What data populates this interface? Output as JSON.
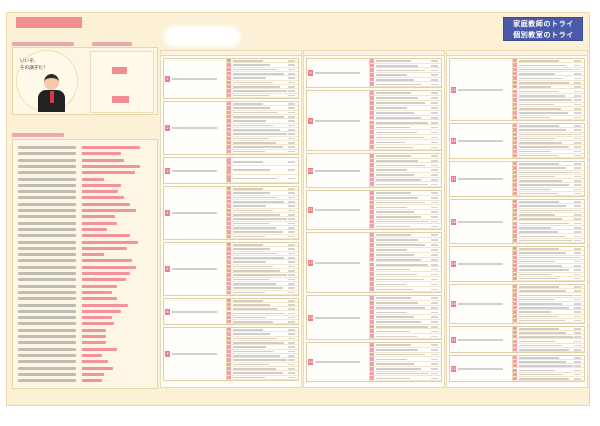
{
  "header": {
    "sheet_title": "",
    "table_title": "",
    "logo_line1": "家庭教師のトライ",
    "logo_line2": "個別教室のトライ",
    "brand_color": "#4a5aa8",
    "accent_color": "#f28d92"
  },
  "avatar": {
    "speech_line1": "いいぞ、",
    "speech_line2": "その調子だ！"
  },
  "mini_chart": {
    "rows": [
      {
        "label": "",
        "value_text": "",
        "fraction": 0.42
      },
      {
        "label": "",
        "value_text": "",
        "fraction": 0.48
      }
    ]
  },
  "left_bars": [
    0.85,
    0.58,
    0.62,
    0.86,
    0.78,
    0.32,
    0.57,
    0.53,
    0.62,
    0.7,
    0.8,
    0.48,
    0.52,
    0.37,
    0.71,
    0.82,
    0.66,
    0.33,
    0.73,
    0.8,
    0.7,
    0.64,
    0.51,
    0.44,
    0.52,
    0.68,
    0.58,
    0.44,
    0.47,
    0.36,
    0.36,
    0.36,
    0.52,
    0.3,
    0.38,
    0.45,
    0.33,
    0.29
  ],
  "topic_columns": [
    {
      "topics": [
        {
          "number": "1",
          "rows": 9
        },
        {
          "number": "2",
          "rows": 12
        },
        {
          "number": "3",
          "rows": 3
        },
        {
          "number": "4",
          "rows": 12
        },
        {
          "number": "5",
          "rows": 12
        },
        {
          "number": "6",
          "rows": 6
        },
        {
          "number": "7",
          "rows": 12
        }
      ]
    },
    {
      "topics": [
        {
          "number": "8",
          "rows": 6
        },
        {
          "number": "9",
          "rows": 12
        },
        {
          "number": "10",
          "rows": 7
        },
        {
          "number": "11",
          "rows": 8
        },
        {
          "number": "12",
          "rows": 12
        },
        {
          "number": "13",
          "rows": 9
        },
        {
          "number": "14",
          "rows": 8
        }
      ]
    },
    {
      "topics": [
        {
          "number": "15",
          "rows": 14
        },
        {
          "number": "16",
          "rows": 8
        },
        {
          "number": "17",
          "rows": 8
        },
        {
          "number": "18",
          "rows": 10
        },
        {
          "number": "19",
          "rows": 8
        },
        {
          "number": "20",
          "rows": 9
        },
        {
          "number": "21",
          "rows": 6
        },
        {
          "number": "22",
          "rows": 6
        }
      ]
    }
  ]
}
